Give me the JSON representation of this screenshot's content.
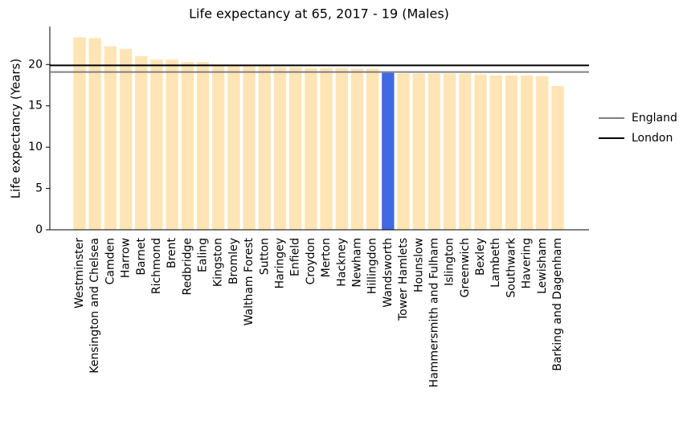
{
  "chart_data": {
    "type": "bar",
    "title": "Life expectancy at 65, 2017 - 19 (Males)",
    "y_label": "Life expectancy (Years)",
    "categories": [
      "Westminster",
      "Kensington and Chelsea",
      "Camden",
      "Harrow",
      "Barnet",
      "Richmond",
      "Brent",
      "Redbridge",
      "Ealing",
      "Kingston",
      "Bromley",
      "Waltham Forest",
      "Sutton",
      "Haringey",
      "Enfield",
      "Croydon",
      "Merton",
      "Hackney",
      "Newham",
      "Hillingdon",
      "Wandsworth",
      "Tower Hamlets",
      "Hounslow",
      "Hammersmith and Fulham",
      "Islington",
      "Greenwich",
      "Bexley",
      "Lambeth",
      "Southwark",
      "Havering",
      "Lewisham",
      "Barking and Dagenham"
    ],
    "values": [
      23.3,
      23.2,
      22.2,
      21.9,
      21.0,
      20.6,
      20.6,
      20.3,
      20.3,
      19.9,
      19.8,
      19.8,
      19.8,
      19.7,
      19.7,
      19.6,
      19.6,
      19.6,
      19.5,
      19.5,
      19.0,
      18.9,
      18.9,
      18.9,
      18.9,
      18.9,
      18.8,
      18.7,
      18.7,
      18.7,
      18.6,
      17.4
    ],
    "colors": [
      "#ffe4b5",
      "#ffe4b5",
      "#ffe4b5",
      "#ffe4b5",
      "#ffe4b5",
      "#ffe4b5",
      "#ffe4b5",
      "#ffe4b5",
      "#ffe4b5",
      "#ffe4b5",
      "#ffe4b5",
      "#ffe4b5",
      "#ffe4b5",
      "#ffe4b5",
      "#ffe4b5",
      "#ffe4b5",
      "#ffe4b5",
      "#ffe4b5",
      "#ffe4b5",
      "#ffe4b5",
      "#4169e1",
      "#ffe4b5",
      "#ffe4b5",
      "#ffe4b5",
      "#ffe4b5",
      "#ffe4b5",
      "#ffe4b5",
      "#ffe4b5",
      "#ffe4b5",
      "#ffe4b5",
      "#ffe4b5",
      "#ffe4b5"
    ],
    "reference_lines": [
      {
        "name": "England",
        "value": 19.1,
        "color": "#808080"
      },
      {
        "name": "London",
        "value": 19.9,
        "color": "#000000"
      }
    ],
    "ylim": [
      0,
      24.6
    ],
    "yticks": [
      0,
      5,
      10,
      15,
      20
    ],
    "legend": "right"
  }
}
